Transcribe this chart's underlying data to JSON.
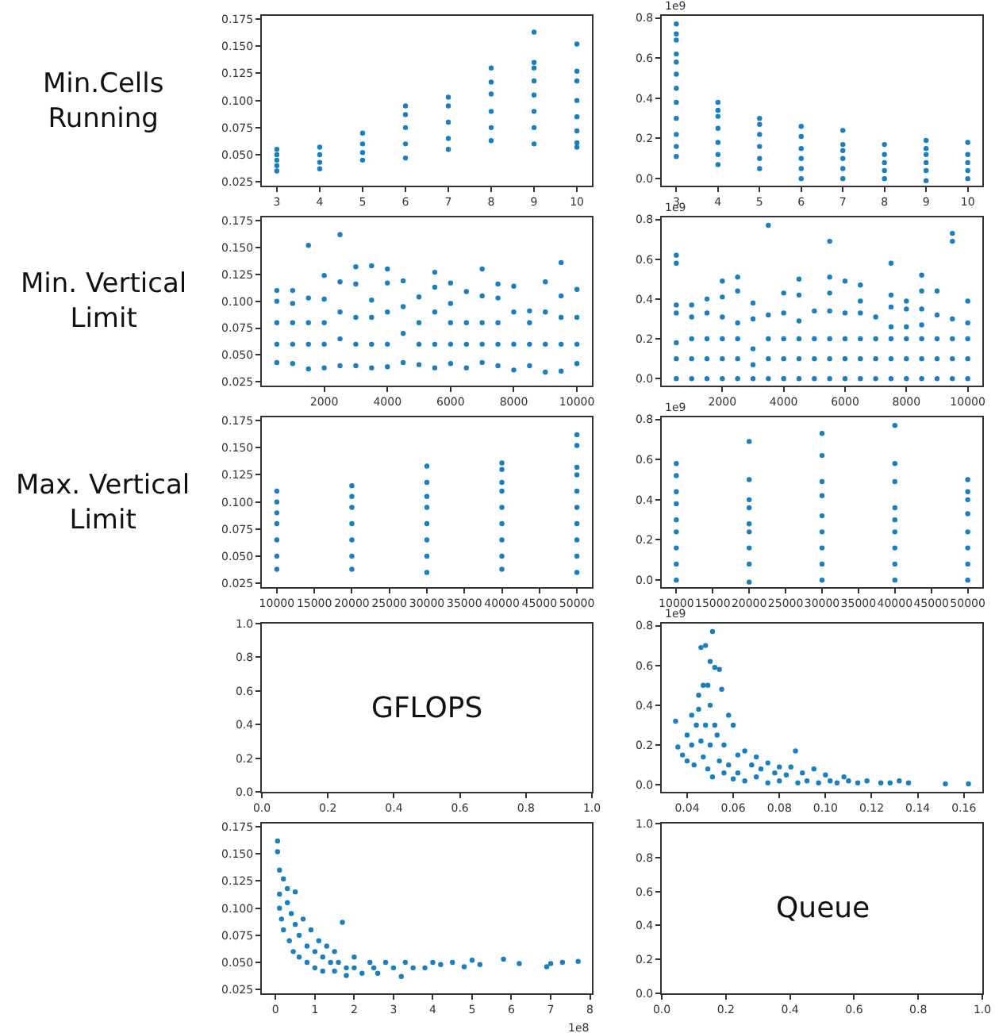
{
  "chart_data": [
    {
      "type": "scatter",
      "annotations": [
        "Min.Cells Running"
      ],
      "color": "#1a80bb",
      "marker": "circle",
      "x": [
        3,
        3,
        3,
        3,
        3,
        4,
        4,
        4,
        4,
        5,
        5,
        5,
        5,
        6,
        6,
        6,
        6,
        6,
        7,
        7,
        7,
        7,
        7,
        8,
        8,
        8,
        8,
        8,
        8,
        9,
        9,
        9,
        9,
        9,
        9,
        9,
        9,
        10,
        10,
        10,
        10,
        10,
        10,
        10,
        10
      ],
      "values": [
        0.035,
        0.04,
        0.045,
        0.05,
        0.055,
        0.037,
        0.043,
        0.05,
        0.057,
        0.045,
        0.052,
        0.06,
        0.07,
        0.047,
        0.06,
        0.075,
        0.087,
        0.095,
        0.055,
        0.065,
        0.08,
        0.095,
        0.103,
        0.063,
        0.075,
        0.09,
        0.106,
        0.117,
        0.13,
        0.06,
        0.075,
        0.09,
        0.105,
        0.118,
        0.13,
        0.135,
        0.163,
        0.057,
        0.061,
        0.072,
        0.085,
        0.1,
        0.118,
        0.127,
        0.152
      ],
      "xlim": [
        2.65,
        10.35
      ],
      "xticks": [
        3,
        4,
        5,
        6,
        7,
        8,
        9,
        10
      ],
      "ylim": [
        0.0215,
        0.178
      ],
      "yticks": [
        {
          "value": 0.025,
          "label": "0.025"
        },
        {
          "value": 0.05,
          "label": "0.050"
        },
        {
          "value": 0.075,
          "label": "0.075"
        },
        {
          "value": 0.1,
          "label": "0.100"
        },
        {
          "value": 0.125,
          "label": "0.125"
        },
        {
          "value": 0.15,
          "label": "0.150"
        },
        {
          "value": 0.175,
          "label": "0.175"
        }
      ]
    },
    {
      "type": "scatter",
      "ylabel": "1e9",
      "color": "#1a80bb",
      "marker": "circle",
      "x": [
        3,
        3,
        3,
        3,
        3,
        3,
        3,
        3,
        3,
        3,
        3,
        3,
        4,
        4,
        4,
        4,
        4,
        4,
        4,
        5,
        5,
        5,
        5,
        5,
        5,
        6,
        6,
        6,
        6,
        6,
        6,
        7,
        7,
        7,
        7,
        7,
        7,
        8,
        8,
        8,
        8,
        8,
        9,
        9,
        9,
        9,
        9,
        9,
        10,
        10,
        10,
        10,
        10
      ],
      "values": [
        0.11,
        0.16,
        0.22,
        0.3,
        0.38,
        0.45,
        0.52,
        0.58,
        0.62,
        0.69,
        0.72,
        0.77,
        0.07,
        0.12,
        0.18,
        0.25,
        0.31,
        0.34,
        0.38,
        0.05,
        0.1,
        0.16,
        0.22,
        0.27,
        0.3,
        0.0,
        0.05,
        0.1,
        0.15,
        0.21,
        0.26,
        0.0,
        0.05,
        0.1,
        0.14,
        0.17,
        0.24,
        0.0,
        0.04,
        0.08,
        0.12,
        0.17,
        -0.01,
        0.04,
        0.08,
        0.12,
        0.15,
        0.19,
        0.0,
        0.04,
        0.08,
        0.12,
        0.18
      ],
      "xlim": [
        2.65,
        10.35
      ],
      "xticks": [
        3,
        4,
        5,
        6,
        7,
        8,
        9,
        10
      ],
      "ylim": [
        -0.035,
        0.81
      ],
      "yticks": [
        {
          "value": 0,
          "label": "0.0"
        },
        0.2,
        0.4,
        0.6,
        0.8
      ]
    },
    {
      "type": "scatter",
      "annotations": [
        "Min. Vertical Limit"
      ],
      "color": "#1a80bb",
      "marker": "circle",
      "x": [
        500,
        500,
        500,
        500,
        500,
        1000,
        1000,
        1000,
        1000,
        1000,
        1500,
        1500,
        1500,
        1500,
        1500,
        2000,
        2000,
        2000,
        2000,
        2000,
        2500,
        2500,
        2500,
        2500,
        2500,
        3000,
        3000,
        3000,
        3000,
        3000,
        3500,
        3500,
        3500,
        3500,
        3500,
        4000,
        4000,
        4000,
        4000,
        4000,
        4500,
        4500,
        4500,
        4500,
        5000,
        5000,
        5000,
        5000,
        5500,
        5500,
        5500,
        5500,
        5500,
        6000,
        6000,
        6000,
        6000,
        6000,
        6500,
        6500,
        6500,
        6500,
        7000,
        7000,
        7000,
        7000,
        7000,
        7500,
        7500,
        7500,
        7500,
        7500,
        8000,
        8000,
        8000,
        8000,
        8500,
        8500,
        8500,
        8500,
        9000,
        9000,
        9000,
        9000,
        9500,
        9500,
        9500,
        9500,
        9500,
        10000,
        10000,
        10000,
        10000
      ],
      "values": [
        0.043,
        0.06,
        0.08,
        0.1,
        0.11,
        0.042,
        0.06,
        0.08,
        0.098,
        0.11,
        0.037,
        0.06,
        0.08,
        0.103,
        0.152,
        0.038,
        0.06,
        0.08,
        0.102,
        0.124,
        0.04,
        0.065,
        0.09,
        0.118,
        0.162,
        0.04,
        0.06,
        0.085,
        0.116,
        0.132,
        0.038,
        0.06,
        0.085,
        0.101,
        0.133,
        0.039,
        0.06,
        0.09,
        0.117,
        0.13,
        0.043,
        0.07,
        0.095,
        0.119,
        0.041,
        0.06,
        0.08,
        0.104,
        0.038,
        0.06,
        0.09,
        0.113,
        0.127,
        0.042,
        0.06,
        0.08,
        0.098,
        0.117,
        0.038,
        0.06,
        0.08,
        0.109,
        0.043,
        0.06,
        0.08,
        0.105,
        0.13,
        0.04,
        0.06,
        0.08,
        0.103,
        0.116,
        0.036,
        0.06,
        0.09,
        0.114,
        0.04,
        0.06,
        0.08,
        0.091,
        0.034,
        0.06,
        0.09,
        0.118,
        0.035,
        0.06,
        0.085,
        0.105,
        0.136,
        0.042,
        0.06,
        0.085,
        0.111
      ],
      "xlim": [
        25,
        10475
      ],
      "xticks": [
        2000,
        4000,
        6000,
        8000,
        10000
      ],
      "ylim": [
        0.0215,
        0.178
      ],
      "yticks": [
        {
          "value": 0.025,
          "label": "0.025"
        },
        {
          "value": 0.05,
          "label": "0.050"
        },
        {
          "value": 0.075,
          "label": "0.075"
        },
        {
          "value": 0.1,
          "label": "0.100"
        },
        {
          "value": 0.125,
          "label": "0.125"
        },
        {
          "value": 0.15,
          "label": "0.150"
        },
        {
          "value": 0.175,
          "label": "0.175"
        }
      ]
    },
    {
      "type": "scatter",
      "ylabel": "1e9",
      "color": "#1a80bb",
      "marker": "circle",
      "x": [
        500,
        500,
        500,
        500,
        500,
        500,
        500,
        1000,
        1000,
        1000,
        1000,
        1000,
        1500,
        1500,
        1500,
        1500,
        1500,
        2000,
        2000,
        2000,
        2000,
        2000,
        2000,
        2500,
        2500,
        2500,
        2500,
        2500,
        2500,
        3000,
        3000,
        3000,
        3000,
        3000,
        3500,
        3500,
        3500,
        3500,
        3500,
        4000,
        4000,
        4000,
        4000,
        4000,
        4500,
        4500,
        4500,
        4500,
        4500,
        4500,
        5000,
        5000,
        5000,
        5000,
        5500,
        5500,
        5500,
        5500,
        5500,
        5500,
        5500,
        6000,
        6000,
        6000,
        6000,
        6000,
        6500,
        6500,
        6500,
        6500,
        6500,
        6500,
        7000,
        7000,
        7000,
        7000,
        7500,
        7500,
        7500,
        7500,
        7500,
        7500,
        7500,
        8000,
        8000,
        8000,
        8000,
        8000,
        8000,
        8500,
        8500,
        8500,
        8500,
        8500,
        8500,
        8500,
        9000,
        9000,
        9000,
        9000,
        9000,
        9500,
        9500,
        9500,
        9500,
        9500,
        9500,
        10000,
        10000,
        10000,
        10000,
        10000
      ],
      "values": [
        0,
        0.1,
        0.18,
        0.33,
        0.37,
        0.58,
        0.62,
        0,
        0.1,
        0.2,
        0.31,
        0.37,
        0,
        0.1,
        0.2,
        0.33,
        0.4,
        0,
        0.1,
        0.2,
        0.31,
        0.41,
        0.49,
        0,
        0.1,
        0.2,
        0.28,
        0.44,
        0.51,
        0,
        0.07,
        0.15,
        0.3,
        0.38,
        0,
        0.1,
        0.2,
        0.32,
        0.77,
        0,
        0.1,
        0.2,
        0.33,
        0.43,
        0,
        0.1,
        0.2,
        0.29,
        0.42,
        0.5,
        0,
        0.1,
        0.2,
        0.34,
        0,
        0.1,
        0.2,
        0.34,
        0.43,
        0.51,
        0.69,
        0,
        0.1,
        0.2,
        0.33,
        0.49,
        0,
        0.1,
        0.2,
        0.33,
        0.39,
        0.47,
        0,
        0.1,
        0.2,
        0.31,
        0,
        0.1,
        0.2,
        0.26,
        0.36,
        0.42,
        0.58,
        0,
        0.1,
        0.2,
        0.26,
        0.35,
        0.39,
        0,
        0.1,
        0.2,
        0.27,
        0.35,
        0.44,
        0.52,
        0,
        0.1,
        0.2,
        0.32,
        0.44,
        0,
        0.1,
        0.2,
        0.3,
        0.69,
        0.73,
        0,
        0.1,
        0.2,
        0.28,
        0.39
      ],
      "xlim": [
        25,
        10475
      ],
      "xticks": [
        2000,
        4000,
        6000,
        8000,
        10000
      ],
      "ylim": [
        -0.035,
        0.81
      ],
      "yticks": [
        {
          "value": 0,
          "label": "0.0"
        },
        0.2,
        0.4,
        0.6,
        0.8
      ]
    },
    {
      "type": "scatter",
      "annotations": [
        "Max. Vertical Limit"
      ],
      "color": "#1a80bb",
      "marker": "circle",
      "x": [
        10000,
        10000,
        10000,
        10000,
        10000,
        10000,
        10000,
        20000,
        20000,
        20000,
        20000,
        20000,
        20000,
        20000,
        30000,
        30000,
        30000,
        30000,
        30000,
        30000,
        30000,
        30000,
        40000,
        40000,
        40000,
        40000,
        40000,
        40000,
        40000,
        40000,
        40000,
        50000,
        50000,
        50000,
        50000,
        50000,
        50000,
        50000,
        50000,
        50000,
        50000
      ],
      "values": [
        0.038,
        0.05,
        0.065,
        0.08,
        0.09,
        0.1,
        0.11,
        0.038,
        0.05,
        0.065,
        0.08,
        0.095,
        0.105,
        0.115,
        0.035,
        0.05,
        0.065,
        0.08,
        0.095,
        0.105,
        0.118,
        0.133,
        0.038,
        0.05,
        0.065,
        0.08,
        0.095,
        0.11,
        0.118,
        0.13,
        0.136,
        0.035,
        0.05,
        0.065,
        0.08,
        0.095,
        0.11,
        0.125,
        0.132,
        0.152,
        0.162
      ],
      "xlim": [
        8000,
        52000
      ],
      "xticks": [
        10000,
        15000,
        20000,
        25000,
        30000,
        35000,
        40000,
        45000,
        50000
      ],
      "ylim": [
        0.0215,
        0.178
      ],
      "yticks": [
        {
          "value": 0.025,
          "label": "0.025"
        },
        {
          "value": 0.05,
          "label": "0.050"
        },
        {
          "value": 0.075,
          "label": "0.075"
        },
        {
          "value": 0.1,
          "label": "0.100"
        },
        {
          "value": 0.125,
          "label": "0.125"
        },
        {
          "value": 0.15,
          "label": "0.150"
        },
        {
          "value": 0.175,
          "label": "0.175"
        }
      ]
    },
    {
      "type": "scatter",
      "ylabel": "1e9",
      "color": "#1a80bb",
      "marker": "circle",
      "x": [
        10000,
        10000,
        10000,
        10000,
        10000,
        10000,
        10000,
        10000,
        10000,
        20000,
        20000,
        20000,
        20000,
        20000,
        20000,
        20000,
        20000,
        20000,
        30000,
        30000,
        30000,
        30000,
        30000,
        30000,
        30000,
        30000,
        30000,
        40000,
        40000,
        40000,
        40000,
        40000,
        40000,
        40000,
        40000,
        40000,
        50000,
        50000,
        50000,
        50000,
        50000,
        50000,
        50000,
        50000
      ],
      "values": [
        0,
        0.08,
        0.16,
        0.24,
        0.3,
        0.38,
        0.44,
        0.52,
        0.58,
        -0.01,
        0.08,
        0.16,
        0.24,
        0.28,
        0.36,
        0.4,
        0.5,
        0.69,
        0,
        0.08,
        0.16,
        0.24,
        0.32,
        0.42,
        0.49,
        0.62,
        0.73,
        0,
        0.08,
        0.16,
        0.24,
        0.3,
        0.36,
        0.49,
        0.58,
        0.77,
        0,
        0.08,
        0.16,
        0.24,
        0.33,
        0.4,
        0.44,
        0.5
      ],
      "xlim": [
        8000,
        52000
      ],
      "xticks": [
        10000,
        15000,
        20000,
        25000,
        30000,
        35000,
        40000,
        45000,
        50000
      ],
      "ylim": [
        -0.035,
        0.81
      ],
      "yticks": [
        {
          "value": 0,
          "label": "0.0"
        },
        0.2,
        0.4,
        0.6,
        0.8
      ]
    },
    {
      "type": "scatter",
      "annotations": [
        "GFLOPS"
      ],
      "xlim": [
        0,
        1
      ],
      "xticks": [
        {
          "value": 0,
          "label": "0.0"
        },
        0.2,
        0.4,
        0.6,
        0.8,
        {
          "value": 1,
          "label": "1.0"
        }
      ],
      "ylim": [
        0,
        1
      ],
      "yticks": [
        {
          "value": 0,
          "label": "0.0"
        },
        0.2,
        0.4,
        0.6,
        0.8,
        {
          "value": 1,
          "label": "1.0"
        }
      ]
    },
    {
      "type": "scatter",
      "ylabel": "1e9",
      "color": "#1a80bb",
      "marker": "circle",
      "x": [
        0.035,
        0.036,
        0.038,
        0.04,
        0.04,
        0.042,
        0.042,
        0.043,
        0.044,
        0.045,
        0.045,
        0.046,
        0.046,
        0.047,
        0.047,
        0.048,
        0.048,
        0.049,
        0.049,
        0.05,
        0.05,
        0.05,
        0.051,
        0.051,
        0.052,
        0.052,
        0.053,
        0.054,
        0.054,
        0.055,
        0.056,
        0.056,
        0.058,
        0.058,
        0.06,
        0.06,
        0.062,
        0.062,
        0.065,
        0.065,
        0.068,
        0.07,
        0.07,
        0.072,
        0.075,
        0.075,
        0.078,
        0.08,
        0.08,
        0.083,
        0.085,
        0.087,
        0.088,
        0.09,
        0.092,
        0.095,
        0.097,
        0.1,
        0.102,
        0.105,
        0.108,
        0.11,
        0.114,
        0.118,
        0.124,
        0.128,
        0.132,
        0.136,
        0.152,
        0.162
      ],
      "values": [
        0.32,
        0.19,
        0.15,
        0.25,
        0.12,
        0.35,
        0.2,
        0.1,
        0.3,
        0.45,
        0.38,
        0.69,
        0.22,
        0.5,
        0.14,
        0.7,
        0.3,
        0.5,
        0.08,
        0.62,
        0.4,
        0.2,
        0.77,
        0.04,
        0.59,
        0.3,
        0.25,
        0.58,
        0.12,
        0.48,
        0.2,
        0.06,
        0.35,
        0.1,
        0.3,
        0.03,
        0.15,
        0.06,
        0.17,
        0.02,
        0.1,
        0.14,
        0.04,
        0.08,
        0.11,
        0.01,
        0.06,
        0.09,
        0.02,
        0.05,
        0.09,
        0.17,
        0.01,
        0.06,
        0.02,
        0.08,
        0.01,
        0.05,
        0.02,
        0.01,
        0.04,
        0.02,
        0.01,
        0.02,
        0.01,
        0.01,
        0.02,
        0.01,
        0.005,
        0.005
      ],
      "xlim": [
        0.029,
        0.168
      ],
      "xticks": [
        0.04,
        0.06,
        0.08,
        {
          "value": 0.1,
          "label": "0.10"
        },
        0.12,
        0.14,
        0.16
      ],
      "ylim": [
        -0.035,
        0.81
      ],
      "yticks": [
        {
          "value": 0,
          "label": "0.0"
        },
        0.2,
        0.4,
        0.6,
        0.8
      ]
    },
    {
      "type": "scatter",
      "xlabel": "1e8",
      "color": "#1a80bb",
      "marker": "circle",
      "x": [
        0.05,
        0.05,
        0.1,
        0.1,
        0.1,
        0.15,
        0.2,
        0.2,
        0.3,
        0.3,
        0.35,
        0.4,
        0.45,
        0.5,
        0.5,
        0.6,
        0.6,
        0.7,
        0.8,
        0.8,
        0.9,
        1.0,
        1.0,
        1.1,
        1.2,
        1.2,
        1.3,
        1.4,
        1.5,
        1.5,
        1.6,
        1.7,
        1.8,
        1.8,
        2.0,
        2.0,
        2.2,
        2.4,
        2.5,
        2.6,
        2.8,
        3.0,
        3.2,
        3.3,
        3.5,
        3.8,
        4.0,
        4.2,
        4.5,
        4.8,
        5.0,
        5.2,
        5.8,
        6.2,
        6.9,
        7.0,
        7.3,
        7.7
      ],
      "values": [
        0.162,
        0.152,
        0.135,
        0.113,
        0.1,
        0.09,
        0.127,
        0.08,
        0.118,
        0.105,
        0.07,
        0.095,
        0.06,
        0.085,
        0.115,
        0.075,
        0.055,
        0.09,
        0.065,
        0.05,
        0.08,
        0.06,
        0.045,
        0.07,
        0.055,
        0.042,
        0.065,
        0.05,
        0.06,
        0.042,
        0.05,
        0.087,
        0.045,
        0.038,
        0.055,
        0.045,
        0.04,
        0.05,
        0.045,
        0.04,
        0.05,
        0.045,
        0.037,
        0.05,
        0.045,
        0.045,
        0.05,
        0.048,
        0.05,
        0.046,
        0.052,
        0.048,
        0.053,
        0.049,
        0.046,
        0.049,
        0.05,
        0.051
      ],
      "xlim": [
        -0.35,
        8.05
      ],
      "xticks": [
        0,
        1,
        2,
        3,
        4,
        5,
        6,
        7,
        8
      ],
      "ylim": [
        0.0215,
        0.178
      ],
      "yticks": [
        {
          "value": 0.025,
          "label": "0.025"
        },
        {
          "value": 0.05,
          "label": "0.050"
        },
        {
          "value": 0.075,
          "label": "0.075"
        },
        {
          "value": 0.1,
          "label": "0.100"
        },
        {
          "value": 0.125,
          "label": "0.125"
        },
        {
          "value": 0.15,
          "label": "0.150"
        },
        {
          "value": 0.175,
          "label": "0.175"
        }
      ]
    },
    {
      "type": "scatter",
      "annotations": [
        "Queue"
      ],
      "xlim": [
        0,
        1
      ],
      "xticks": [
        {
          "value": 0,
          "label": "0.0"
        },
        0.2,
        0.4,
        0.6,
        0.8,
        {
          "value": 1,
          "label": "1.0"
        }
      ],
      "ylim": [
        0,
        1
      ],
      "yticks": [
        {
          "value": 0,
          "label": "0.0"
        },
        0.2,
        0.4,
        0.6,
        0.8,
        {
          "value": 1,
          "label": "1.0"
        }
      ]
    }
  ]
}
